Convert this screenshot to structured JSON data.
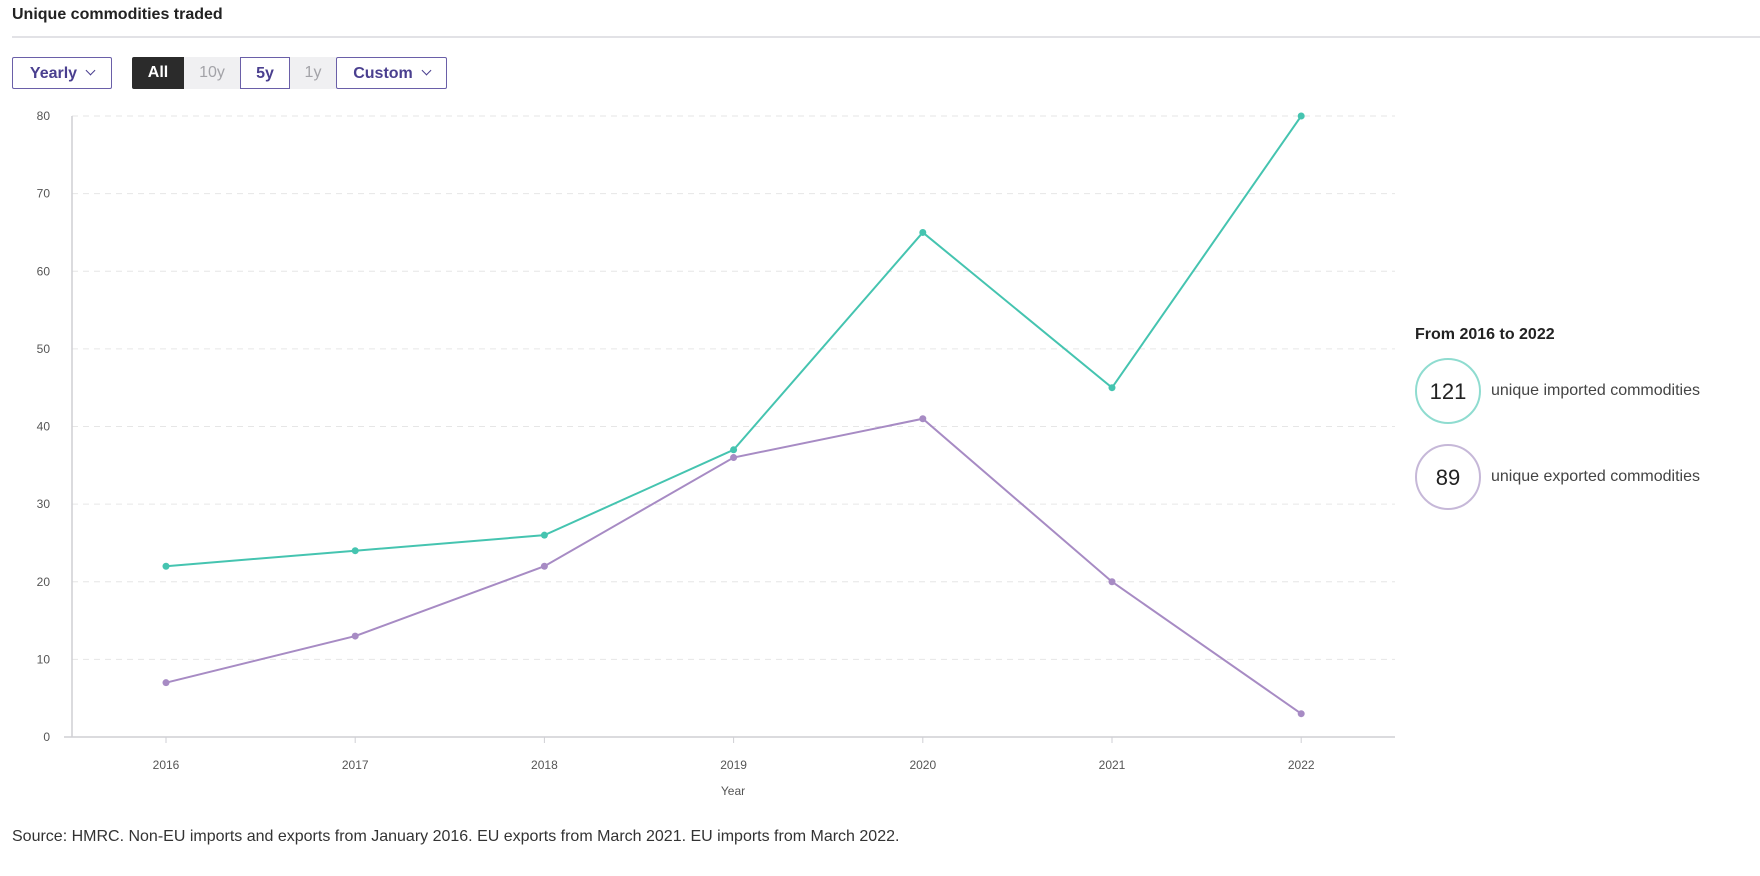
{
  "title": "Unique commodities traded",
  "controls": {
    "frequency_label": "Yearly",
    "ranges": [
      "All",
      "10y",
      "5y",
      "1y"
    ],
    "custom_label": "Custom"
  },
  "summary": {
    "heading": "From 2016 to 2022",
    "imported_count": "121",
    "imported_label": "unique imported commodities",
    "exported_count": "89",
    "exported_label": "unique exported commodities"
  },
  "source": "Source: HMRC. Non-EU imports and exports from January 2016. EU exports from March 2021. EU imports from March 2022.",
  "colors": {
    "imports": "#45c4b0",
    "exports": "#a78bc4",
    "grid": "#e6e6e6",
    "axis": "#cfcfd4"
  },
  "chart_data": {
    "type": "line",
    "x": [
      "2016",
      "2017",
      "2018",
      "2019",
      "2020",
      "2021",
      "2022"
    ],
    "xlabel": "Year",
    "ylabel": "",
    "ylim": [
      0,
      80
    ],
    "yticks": [
      0,
      10,
      20,
      30,
      40,
      50,
      60,
      70,
      80
    ],
    "grid": true,
    "series": [
      {
        "key": "imports",
        "values": [
          22,
          24,
          26,
          37,
          65,
          45,
          80
        ]
      },
      {
        "key": "exports",
        "values": [
          7,
          13,
          22,
          36,
          41,
          20,
          3
        ]
      }
    ]
  }
}
